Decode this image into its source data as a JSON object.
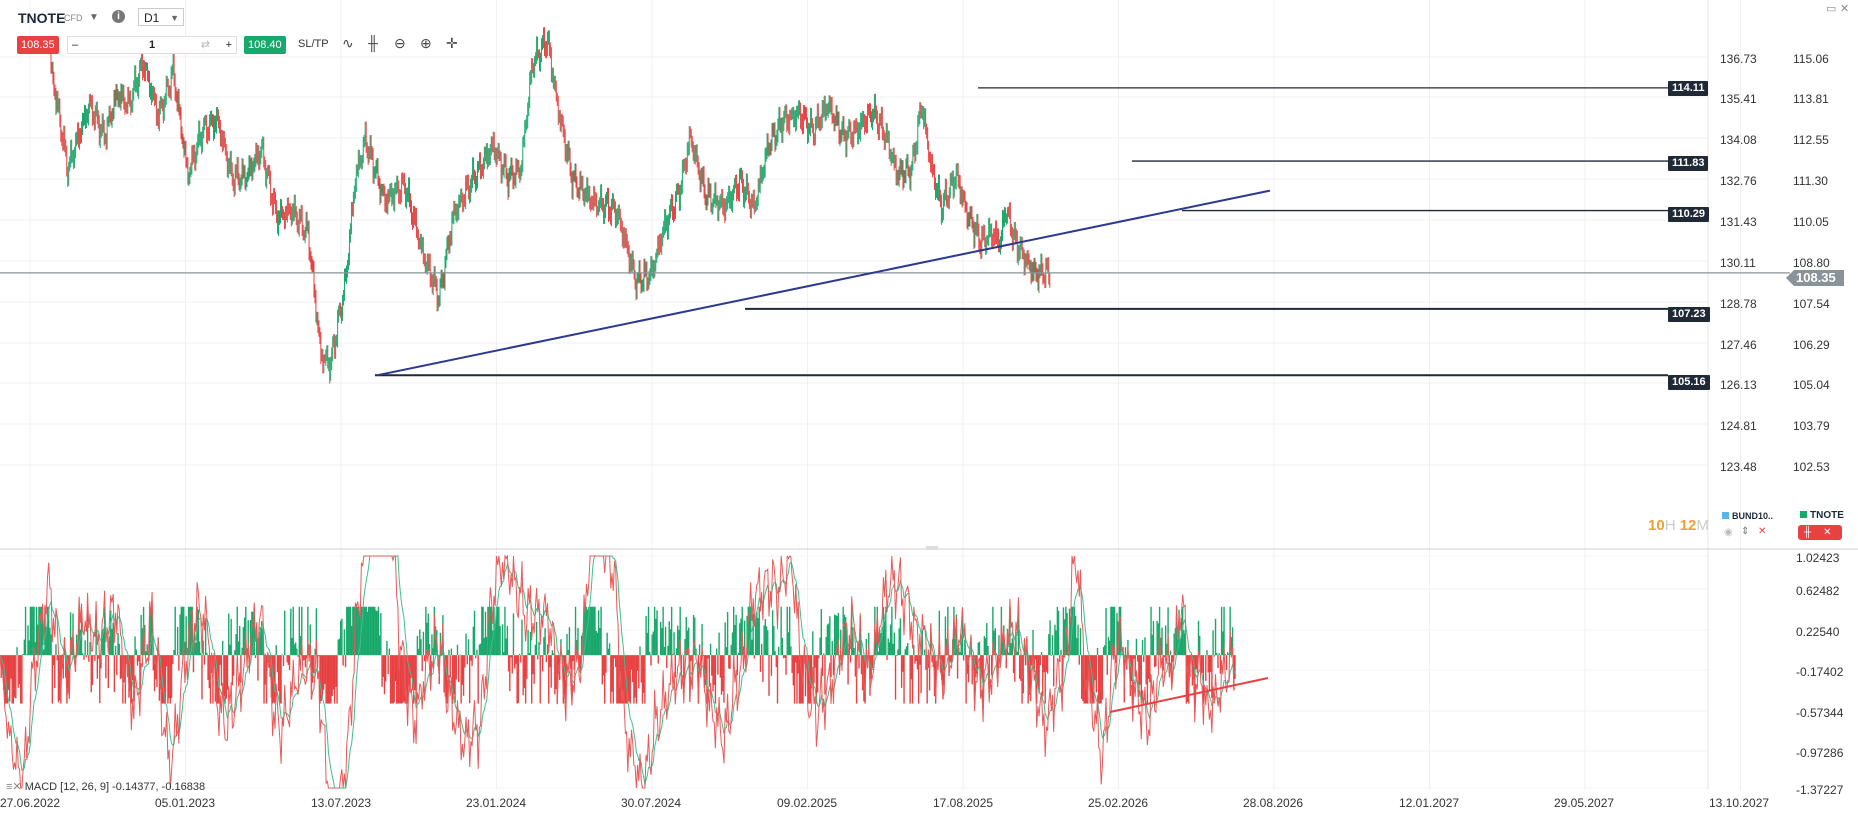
{
  "toolbar": {
    "symbol": "TNOTE",
    "instrument_type": "CFD",
    "timeframe": "D1",
    "sell_price": "108.35",
    "buy_price": "108.40",
    "quantity": "1",
    "minus": "–",
    "plus": "+",
    "sltp_label": "SL/TP"
  },
  "price_axis": {
    "left_labels": [
      "136.73",
      "135.41",
      "134.08",
      "132.76",
      "131.43",
      "130.11",
      "128.78",
      "127.46",
      "126.13",
      "124.81",
      "123.48"
    ],
    "right_labels": [
      "115.06",
      "113.81",
      "112.55",
      "111.30",
      "110.05",
      "108.80",
      "107.54",
      "106.29",
      "105.04",
      "103.79",
      "102.53"
    ],
    "current_price": "108.35"
  },
  "levels": [
    {
      "label": "114.11"
    },
    {
      "label": "111.83"
    },
    {
      "label": "110.29"
    },
    {
      "label": "107.23"
    },
    {
      "label": "105.16"
    }
  ],
  "macd_axis": {
    "labels": [
      "1.02423",
      "0.62482",
      "0.22540",
      "-0.17402",
      "-0.57344",
      "-0.97286",
      "-1.37227"
    ]
  },
  "indicator": {
    "label": "MACD [12, 26, 9] -0.14377, -0.16838"
  },
  "date_axis": {
    "labels": [
      "27.06.2022",
      "05.01.2023",
      "13.07.2023",
      "23.01.2024",
      "30.07.2024",
      "09.02.2025",
      "17.08.2025",
      "25.02.2026",
      "28.08.2026",
      "12.01.2027",
      "29.05.2027",
      "13.10.2027"
    ]
  },
  "countdown": {
    "hours": "10",
    "h_unit": "H",
    "minutes": "12",
    "m_unit": "M"
  },
  "legend": {
    "compare_symbol": "BUND10..",
    "main_symbol": "TNOTE"
  },
  "colors": {
    "up": "#19a86b",
    "down": "#e84142",
    "trendline": "#2b3990",
    "macd_line": "#e85a5a",
    "signal_line": "#3fbf8f",
    "level_tag": "#1f2a36"
  },
  "chart_data": {
    "type": "candlestick",
    "y_range_left": [
      122.5,
      137.9
    ],
    "y_range_right": [
      101.9,
      115.6
    ],
    "horizontal_levels": [
      114.11,
      111.83,
      110.29,
      107.23,
      105.16
    ],
    "current_price": 108.35,
    "macd_range": [
      -1.37227,
      1.02423
    ],
    "macd_params": [
      12,
      26,
      9
    ],
    "macd_values": {
      "macd": -0.14377,
      "signal": -0.16838
    },
    "grid": true
  }
}
